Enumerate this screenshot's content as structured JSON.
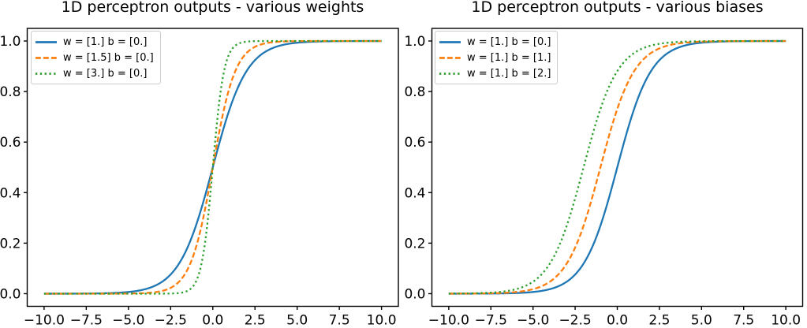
{
  "colors": {
    "text": "#000000",
    "axes": "#000000",
    "legend_border": "#cccccc",
    "background": "#ffffff"
  },
  "chart_data": [
    {
      "type": "line",
      "title": "1D perceptron outputs - various weights",
      "xlabel": "",
      "ylabel": "",
      "x_ticks": [
        -10.0,
        -7.5,
        -5.0,
        -2.5,
        0.0,
        2.5,
        5.0,
        7.5,
        10.0
      ],
      "y_ticks": [
        0.0,
        0.2,
        0.4,
        0.6,
        0.8,
        1.0
      ],
      "xlim": [
        -11,
        11
      ],
      "ylim": [
        -0.05,
        1.05
      ],
      "x_range": [
        -10,
        10
      ],
      "grid": false,
      "legend_position": "upper left",
      "formula": "y = 1 / (1 + exp(-(w*x + b)))",
      "series": [
        {
          "label": "w = [1.] b = [0.]",
          "w": 1.0,
          "b": 0.0,
          "color": "#1f77b4",
          "linestyle": "solid"
        },
        {
          "label": "w = [1.5] b = [0.]",
          "w": 1.5,
          "b": 0.0,
          "color": "#ff7f0e",
          "linestyle": "dashed"
        },
        {
          "label": "w = [3.] b = [0.]",
          "w": 3.0,
          "b": 0.0,
          "color": "#2ca02c",
          "linestyle": "dotted"
        }
      ],
      "sample_points": {
        "x": [
          -10,
          -7.5,
          -5,
          -2.5,
          0,
          2.5,
          5,
          7.5,
          10
        ],
        "y_per_series": [
          [
            4.54e-05,
            0.000553,
            0.00669,
            0.07586,
            0.5,
            0.92414,
            0.99331,
            0.99945,
            0.99995
          ],
          [
            3e-07,
            1.31e-05,
            0.000553,
            0.02297,
            0.5,
            0.97703,
            0.99945,
            0.999987,
            0.9999997
          ],
          [
            0.0,
            0.0,
            3e-07,
            0.000553,
            0.5,
            0.99945,
            0.9999997,
            1.0,
            1.0
          ]
        ]
      }
    },
    {
      "type": "line",
      "title": "1D perceptron outputs - various biases",
      "xlabel": "",
      "ylabel": "",
      "x_ticks": [
        -10.0,
        -7.5,
        -5.0,
        -2.5,
        0.0,
        2.5,
        5.0,
        7.5,
        10.0
      ],
      "y_ticks": [
        0.0,
        0.2,
        0.4,
        0.6,
        0.8,
        1.0
      ],
      "xlim": [
        -11,
        11
      ],
      "ylim": [
        -0.05,
        1.05
      ],
      "x_range": [
        -10,
        10
      ],
      "grid": false,
      "legend_position": "upper left",
      "formula": "y = 1 / (1 + exp(-(w*x + b)))",
      "series": [
        {
          "label": "w = [1.] b = [0.]",
          "w": 1.0,
          "b": 0.0,
          "color": "#1f77b4",
          "linestyle": "solid"
        },
        {
          "label": "w = [1.] b = [1.]",
          "w": 1.0,
          "b": 1.0,
          "color": "#ff7f0e",
          "linestyle": "dashed"
        },
        {
          "label": "w = [1.] b = [2.]",
          "w": 1.0,
          "b": 2.0,
          "color": "#2ca02c",
          "linestyle": "dotted"
        }
      ],
      "sample_points": {
        "x": [
          -10,
          -7.5,
          -5,
          -2.5,
          0,
          2.5,
          5,
          7.5,
          10
        ],
        "y_per_series": [
          [
            4.54e-05,
            0.000553,
            0.00669,
            0.07586,
            0.5,
            0.92414,
            0.99331,
            0.99945,
            0.99995
          ],
          [
            0.000123,
            0.0015,
            0.01799,
            0.18243,
            0.73106,
            0.97069,
            0.99753,
            0.9998,
            0.99998
          ],
          [
            0.000335,
            0.00407,
            0.04743,
            0.37754,
            0.8808,
            0.98901,
            0.99909,
            0.999925,
            0.999994
          ]
        ]
      }
    }
  ]
}
